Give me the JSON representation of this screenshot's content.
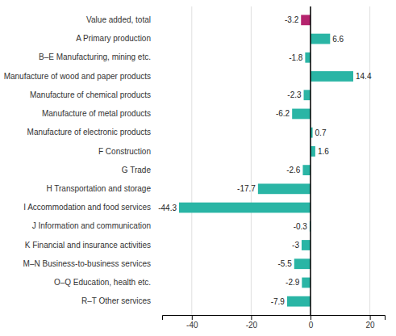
{
  "chart_data": {
    "type": "bar",
    "orientation": "horizontal",
    "categories": [
      "Value added, total",
      "A Primary production",
      "B–E Manufacturing, mining etc.",
      "Manufacture of wood and paper products",
      "Manufacture of chemical products",
      "Manufacture of metal products",
      "Manufacture of electronic products",
      "F Construction",
      "G Trade",
      "H Transportation and storage",
      "I Accommodation and food services",
      "J Information and communication",
      "K Financial and insurance activities",
      "M–N Business-to-business services",
      "O–Q Education, health etc.",
      "R–T Other services"
    ],
    "values": [
      -3.2,
      6.6,
      -1.8,
      14.4,
      -2.3,
      -6.2,
      0.7,
      1.6,
      -2.6,
      -17.7,
      -44.3,
      -0.3,
      -3.0,
      -5.5,
      -2.9,
      -7.9
    ],
    "colors": [
      "#b5246e",
      "#2ab5a5",
      "#2ab5a5",
      "#2ab5a5",
      "#2ab5a5",
      "#2ab5a5",
      "#2ab5a5",
      "#2ab5a5",
      "#2ab5a5",
      "#2ab5a5",
      "#2ab5a5",
      "#2ab5a5",
      "#2ab5a5",
      "#2ab5a5",
      "#2ab5a5",
      "#2ab5a5"
    ],
    "xlim": [
      -50,
      25
    ],
    "xticks": [
      -40,
      -20,
      0,
      20
    ],
    "grid": true,
    "data_labels": true
  }
}
